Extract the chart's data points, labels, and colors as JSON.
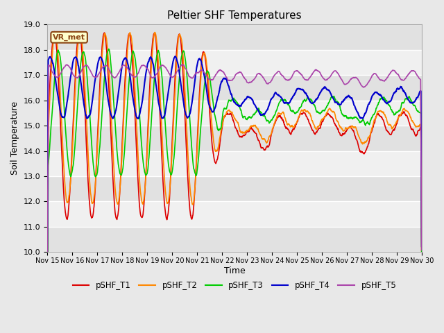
{
  "title": "Peltier SHF Temperatures",
  "xlabel": "Time",
  "ylabel": "Soil Temperature",
  "ylim": [
    10.0,
    19.0
  ],
  "yticks": [
    10.0,
    11.0,
    12.0,
    13.0,
    14.0,
    15.0,
    16.0,
    17.0,
    18.0,
    19.0
  ],
  "colors": {
    "pSHF_T1": "#dd0000",
    "pSHF_T2": "#ff8800",
    "pSHF_T3": "#00cc00",
    "pSHF_T4": "#0000cc",
    "pSHF_T5": "#aa44aa"
  },
  "annotation": "VR_met",
  "bg_color": "#e8e8e8",
  "axes_bg": "#f0f0f0",
  "linewidth": 1.2,
  "legend_labels": [
    "pSHF_T1",
    "pSHF_T2",
    "pSHF_T3",
    "pSHF_T4",
    "pSHF_T5"
  ],
  "x_tick_labels": [
    "Nov 15",
    "Nov 16",
    "Nov 17",
    "Nov 18",
    "Nov 19",
    "Nov 20",
    "Nov 21",
    "Nov 22",
    "Nov 23",
    "Nov 24",
    "Nov 25",
    "Nov 26",
    "Nov 27",
    "Nov 28",
    "Nov 29",
    "Nov 30"
  ],
  "num_points": 1440
}
